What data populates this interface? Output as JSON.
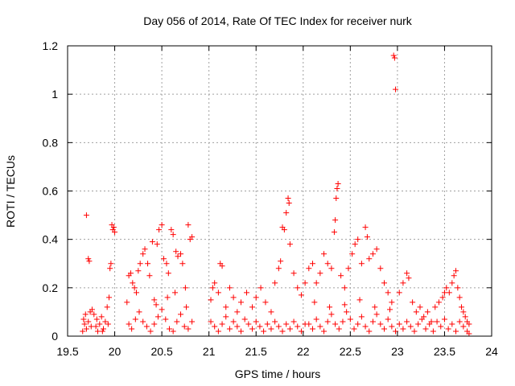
{
  "chart_data": {
    "type": "scatter",
    "title": "Day 056 of 2014, Rate Of TEC Index for receiver nurk",
    "xlabel": "GPS time / hours",
    "ylabel": "ROTI / TECUs",
    "xlim": [
      19.5,
      24
    ],
    "ylim": [
      0,
      1.2
    ],
    "xticks": [
      19.5,
      20,
      20.5,
      21,
      21.5,
      22,
      22.5,
      23,
      23.5,
      24
    ],
    "xtick_labels": [
      "19.5",
      "20",
      "20.5",
      "21",
      "21.5",
      "22",
      "22.5",
      "23",
      "23.5",
      "24"
    ],
    "yticks": [
      0,
      0.2,
      0.4,
      0.6,
      0.8,
      1,
      1.2
    ],
    "ytick_labels": [
      "0",
      "0.2",
      "0.4",
      "0.6",
      "0.8",
      "1",
      "1.2"
    ],
    "grid": true,
    "marker": "+",
    "marker_color": "#ff0000",
    "series": [
      {
        "name": "ROTI",
        "points": [
          [
            19.7,
            0.5
          ],
          [
            19.72,
            0.32
          ],
          [
            19.73,
            0.31
          ],
          [
            19.67,
            0.07
          ],
          [
            19.68,
            0.05
          ],
          [
            19.7,
            0.03
          ],
          [
            19.72,
            0.06
          ],
          [
            19.74,
            0.1
          ],
          [
            19.76,
            0.11
          ],
          [
            19.78,
            0.09
          ],
          [
            19.8,
            0.04
          ],
          [
            19.82,
            0.02
          ],
          [
            19.84,
            0.05
          ],
          [
            19.86,
            0.08
          ],
          [
            19.88,
            0.03
          ],
          [
            19.9,
            0.06
          ],
          [
            19.92,
            0.12
          ],
          [
            19.94,
            0.16
          ],
          [
            19.95,
            0.28
          ],
          [
            19.96,
            0.3
          ],
          [
            19.97,
            0.46
          ],
          [
            19.98,
            0.44
          ],
          [
            19.99,
            0.45
          ],
          [
            20.0,
            0.43
          ],
          [
            19.66,
            0.02
          ],
          [
            19.69,
            0.09
          ],
          [
            19.75,
            0.04
          ],
          [
            19.81,
            0.07
          ],
          [
            19.87,
            0.02
          ],
          [
            19.93,
            0.05
          ],
          [
            20.13,
            0.14
          ],
          [
            20.15,
            0.25
          ],
          [
            20.17,
            0.26
          ],
          [
            20.19,
            0.22
          ],
          [
            20.21,
            0.2
          ],
          [
            20.23,
            0.18
          ],
          [
            20.25,
            0.27
          ],
          [
            20.27,
            0.3
          ],
          [
            20.3,
            0.34
          ],
          [
            20.32,
            0.36
          ],
          [
            20.35,
            0.3
          ],
          [
            20.37,
            0.25
          ],
          [
            20.4,
            0.39
          ],
          [
            20.42,
            0.15
          ],
          [
            20.45,
            0.38
          ],
          [
            20.47,
            0.44
          ],
          [
            20.5,
            0.46
          ],
          [
            20.52,
            0.32
          ],
          [
            20.55,
            0.3
          ],
          [
            20.57,
            0.26
          ],
          [
            20.6,
            0.44
          ],
          [
            20.62,
            0.42
          ],
          [
            20.65,
            0.35
          ],
          [
            20.67,
            0.33
          ],
          [
            20.7,
            0.34
          ],
          [
            20.72,
            0.3
          ],
          [
            20.75,
            0.2
          ],
          [
            20.78,
            0.46
          ],
          [
            20.8,
            0.4
          ],
          [
            20.82,
            0.41
          ],
          [
            20.15,
            0.05
          ],
          [
            20.18,
            0.03
          ],
          [
            20.22,
            0.07
          ],
          [
            20.26,
            0.1
          ],
          [
            20.3,
            0.06
          ],
          [
            20.34,
            0.04
          ],
          [
            20.38,
            0.02
          ],
          [
            20.42,
            0.05
          ],
          [
            20.46,
            0.08
          ],
          [
            20.5,
            0.11
          ],
          [
            20.54,
            0.07
          ],
          [
            20.58,
            0.03
          ],
          [
            20.62,
            0.02
          ],
          [
            20.66,
            0.06
          ],
          [
            20.7,
            0.09
          ],
          [
            20.74,
            0.04
          ],
          [
            20.78,
            0.03
          ],
          [
            20.82,
            0.06
          ],
          [
            20.44,
            0.13
          ],
          [
            20.56,
            0.16
          ],
          [
            20.64,
            0.18
          ],
          [
            20.76,
            0.12
          ],
          [
            21.02,
            0.15
          ],
          [
            21.04,
            0.2
          ],
          [
            21.06,
            0.22
          ],
          [
            21.1,
            0.18
          ],
          [
            21.12,
            0.3
          ],
          [
            21.14,
            0.29
          ],
          [
            21.18,
            0.12
          ],
          [
            21.22,
            0.2
          ],
          [
            21.26,
            0.16
          ],
          [
            21.3,
            0.1
          ],
          [
            21.34,
            0.14
          ],
          [
            21.4,
            0.18
          ],
          [
            21.46,
            0.12
          ],
          [
            21.5,
            0.16
          ],
          [
            21.55,
            0.2
          ],
          [
            21.6,
            0.14
          ],
          [
            21.66,
            0.1
          ],
          [
            21.7,
            0.22
          ],
          [
            21.74,
            0.28
          ],
          [
            21.76,
            0.31
          ],
          [
            21.78,
            0.45
          ],
          [
            21.8,
            0.44
          ],
          [
            21.82,
            0.51
          ],
          [
            21.84,
            0.57
          ],
          [
            21.85,
            0.55
          ],
          [
            21.86,
            0.38
          ],
          [
            21.9,
            0.26
          ],
          [
            21.94,
            0.2
          ],
          [
            21.98,
            0.17
          ],
          [
            22.02,
            0.22
          ],
          [
            21.02,
            0.06
          ],
          [
            21.06,
            0.04
          ],
          [
            21.1,
            0.02
          ],
          [
            21.14,
            0.05
          ],
          [
            21.18,
            0.08
          ],
          [
            21.22,
            0.03
          ],
          [
            21.26,
            0.06
          ],
          [
            21.3,
            0.04
          ],
          [
            21.34,
            0.02
          ],
          [
            21.38,
            0.07
          ],
          [
            21.42,
            0.05
          ],
          [
            21.46,
            0.03
          ],
          [
            21.5,
            0.06
          ],
          [
            21.54,
            0.04
          ],
          [
            21.58,
            0.02
          ],
          [
            21.62,
            0.05
          ],
          [
            21.66,
            0.03
          ],
          [
            21.7,
            0.06
          ],
          [
            21.74,
            0.04
          ],
          [
            21.78,
            0.02
          ],
          [
            21.82,
            0.05
          ],
          [
            21.86,
            0.03
          ],
          [
            21.9,
            0.06
          ],
          [
            21.94,
            0.04
          ],
          [
            21.98,
            0.02
          ],
          [
            22.02,
            0.05
          ],
          [
            22.06,
            0.28
          ],
          [
            22.1,
            0.3
          ],
          [
            22.14,
            0.22
          ],
          [
            22.18,
            0.26
          ],
          [
            22.22,
            0.34
          ],
          [
            22.26,
            0.3
          ],
          [
            22.3,
            0.28
          ],
          [
            22.33,
            0.43
          ],
          [
            22.34,
            0.48
          ],
          [
            22.35,
            0.57
          ],
          [
            22.36,
            0.61
          ],
          [
            22.37,
            0.63
          ],
          [
            22.4,
            0.25
          ],
          [
            22.44,
            0.2
          ],
          [
            22.48,
            0.28
          ],
          [
            22.52,
            0.34
          ],
          [
            22.55,
            0.38
          ],
          [
            22.58,
            0.4
          ],
          [
            22.62,
            0.3
          ],
          [
            22.66,
            0.45
          ],
          [
            22.68,
            0.41
          ],
          [
            22.7,
            0.32
          ],
          [
            22.74,
            0.34
          ],
          [
            22.78,
            0.36
          ],
          [
            22.82,
            0.28
          ],
          [
            22.86,
            0.22
          ],
          [
            22.9,
            0.18
          ],
          [
            22.94,
            0.14
          ],
          [
            22.96,
            1.16
          ],
          [
            22.97,
            1.15
          ],
          [
            22.98,
            1.02
          ],
          [
            22.06,
            0.05
          ],
          [
            22.1,
            0.03
          ],
          [
            22.14,
            0.07
          ],
          [
            22.18,
            0.04
          ],
          [
            22.22,
            0.02
          ],
          [
            22.26,
            0.06
          ],
          [
            22.3,
            0.09
          ],
          [
            22.34,
            0.05
          ],
          [
            22.38,
            0.03
          ],
          [
            22.42,
            0.06
          ],
          [
            22.46,
            0.1
          ],
          [
            22.5,
            0.07
          ],
          [
            22.54,
            0.03
          ],
          [
            22.58,
            0.05
          ],
          [
            22.62,
            0.08
          ],
          [
            22.66,
            0.04
          ],
          [
            22.7,
            0.02
          ],
          [
            22.74,
            0.06
          ],
          [
            22.78,
            0.09
          ],
          [
            22.82,
            0.05
          ],
          [
            22.86,
            0.03
          ],
          [
            22.9,
            0.07
          ],
          [
            22.94,
            0.04
          ],
          [
            22.98,
            0.02
          ],
          [
            22.12,
            0.14
          ],
          [
            22.28,
            0.12
          ],
          [
            22.44,
            0.13
          ],
          [
            22.6,
            0.15
          ],
          [
            22.76,
            0.12
          ],
          [
            22.92,
            0.11
          ],
          [
            23.02,
            0.18
          ],
          [
            23.06,
            0.22
          ],
          [
            23.1,
            0.26
          ],
          [
            23.12,
            0.24
          ],
          [
            23.16,
            0.14
          ],
          [
            23.2,
            0.1
          ],
          [
            23.24,
            0.12
          ],
          [
            23.28,
            0.08
          ],
          [
            23.32,
            0.1
          ],
          [
            23.36,
            0.06
          ],
          [
            23.4,
            0.12
          ],
          [
            23.44,
            0.14
          ],
          [
            23.48,
            0.16
          ],
          [
            23.5,
            0.18
          ],
          [
            23.52,
            0.2
          ],
          [
            23.55,
            0.18
          ],
          [
            23.58,
            0.22
          ],
          [
            23.6,
            0.25
          ],
          [
            23.62,
            0.27
          ],
          [
            23.64,
            0.2
          ],
          [
            23.66,
            0.16
          ],
          [
            23.68,
            0.12
          ],
          [
            23.7,
            0.1
          ],
          [
            23.72,
            0.08
          ],
          [
            23.74,
            0.06
          ],
          [
            23.02,
            0.05
          ],
          [
            23.06,
            0.03
          ],
          [
            23.1,
            0.06
          ],
          [
            23.14,
            0.04
          ],
          [
            23.18,
            0.02
          ],
          [
            23.22,
            0.05
          ],
          [
            23.26,
            0.07
          ],
          [
            23.3,
            0.03
          ],
          [
            23.34,
            0.05
          ],
          [
            23.38,
            0.02
          ],
          [
            23.42,
            0.06
          ],
          [
            23.46,
            0.04
          ],
          [
            23.5,
            0.07
          ],
          [
            23.54,
            0.03
          ],
          [
            23.58,
            0.05
          ],
          [
            23.62,
            0.02
          ],
          [
            23.66,
            0.06
          ],
          [
            23.7,
            0.04
          ],
          [
            23.74,
            0.02
          ],
          [
            23.76,
            0.05
          ],
          [
            23.76,
            0.01
          ]
        ]
      }
    ]
  }
}
